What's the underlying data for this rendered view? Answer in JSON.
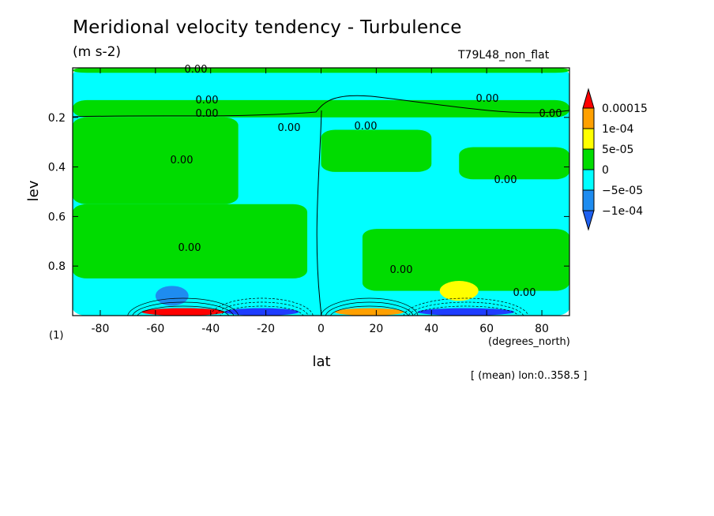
{
  "title": "Meridional velocity tendency - Turbulence",
  "units": "(m s-2)",
  "run_label": "T79L48_non_flat",
  "averaging_note": "[ (mean) lon:0..358.5 ]",
  "x_units_note": "(degrees_north)",
  "y_units_note": "(1)",
  "colors": {
    "neg2": "#1e8cf0",
    "neg1": "#00ffff",
    "zero": "#00dc00",
    "pos1": "#ffff00",
    "pos2": "#ffa000",
    "pos3": "#ff0000",
    "deep_neg": "#1e3cff"
  },
  "chart_data": {
    "type": "heatmap",
    "title": "Meridional velocity tendency - Turbulence",
    "xlabel": "lat",
    "ylabel": "lev",
    "xlim": [
      -90,
      90
    ],
    "ylim": [
      1.0,
      0.0
    ],
    "x_ticks": [
      -80,
      -60,
      -40,
      -20,
      0,
      20,
      40,
      60,
      80
    ],
    "y_ticks": [
      0.2,
      0.4,
      0.6,
      0.8
    ],
    "contour_labels": [
      "0.00",
      "0.00",
      "0.00",
      "0.00",
      "0.00",
      "0.00",
      "0.00",
      "0.00",
      "0.00",
      "0.00",
      "0.00",
      "0.00"
    ],
    "colorbar": {
      "labels": [
        "0.00015",
        "1e-04",
        "5e-05",
        "0",
        "−5e-05",
        "−1e-04"
      ],
      "colors": [
        "#ff0000",
        "#ffa000",
        "#ffff00",
        "#00dc00",
        "#00ffff",
        "#1e8cf0"
      ]
    },
    "regions": [
      {
        "level": "neg1",
        "lat": [
          -90,
          90
        ],
        "lev": [
          0.0,
          1.0
        ]
      },
      {
        "level": "zero",
        "lat": [
          -90,
          90
        ],
        "lev": [
          0.0,
          0.02
        ]
      },
      {
        "level": "zero",
        "lat": [
          -90,
          90
        ],
        "lev": [
          0.13,
          0.2
        ]
      },
      {
        "level": "zero",
        "lat": [
          -90,
          -30
        ],
        "lev": [
          0.2,
          0.55
        ]
      },
      {
        "level": "zero",
        "lat": [
          -90,
          -5
        ],
        "lev": [
          0.55,
          0.85
        ]
      },
      {
        "level": "zero",
        "lat": [
          0,
          40
        ],
        "lev": [
          0.25,
          0.42
        ]
      },
      {
        "level": "zero",
        "lat": [
          50,
          90
        ],
        "lev": [
          0.32,
          0.45
        ]
      },
      {
        "level": "zero",
        "lat": [
          15,
          90
        ],
        "lev": [
          0.65,
          0.9
        ]
      },
      {
        "level": "neg2",
        "lat": [
          -60,
          -48
        ],
        "lev": [
          0.88,
          0.96
        ]
      },
      {
        "level": "pos1",
        "lat": [
          43,
          57
        ],
        "lev": [
          0.86,
          0.94
        ]
      },
      {
        "level": "pos3",
        "lat": [
          -65,
          -35
        ],
        "lev": [
          0.97,
          1.0
        ]
      },
      {
        "level": "deep_neg",
        "lat": [
          -35,
          -8
        ],
        "lev": [
          0.97,
          1.0
        ]
      },
      {
        "level": "pos2",
        "lat": [
          5,
          30
        ],
        "lev": [
          0.97,
          1.0
        ]
      },
      {
        "level": "deep_neg",
        "lat": [
          35,
          70
        ],
        "lev": [
          0.97,
          1.0
        ]
      }
    ]
  }
}
